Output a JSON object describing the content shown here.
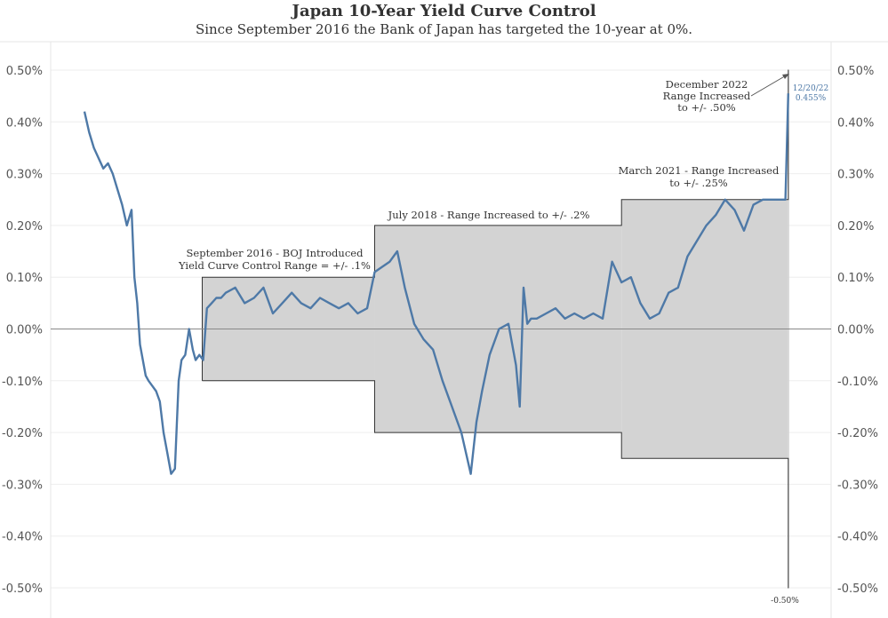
{
  "chart_data": {
    "type": "line",
    "title": "Japan 10-Year Yield Curve Control",
    "subtitle": "Since September 2016 the Bank of Japan has targeted the 10-year at 0%.",
    "ylim": [
      -0.5,
      0.5
    ],
    "yticks": [
      0.5,
      0.4,
      0.3,
      0.2,
      0.1,
      0.0,
      -0.1,
      -0.2,
      -0.3,
      -0.4,
      -0.5
    ],
    "ytick_labels": [
      "0.50%",
      "0.40%",
      "0.30%",
      "0.20%",
      "0.10%",
      "0.00%",
      "-0.10%",
      "-0.20%",
      "-0.30%",
      "-0.40%",
      "-0.50%"
    ],
    "grid": true,
    "x_range": [
      2015.5,
      2023.0
    ],
    "series": [
      {
        "name": "",
        "color": "#4e79a7",
        "x": [
          2015.5,
          2015.55,
          2015.6,
          2015.65,
          2015.7,
          2015.75,
          2015.8,
          2015.85,
          2015.9,
          2015.95,
          2016.0,
          2016.03,
          2016.06,
          2016.09,
          2016.12,
          2016.15,
          2016.18,
          2016.22,
          2016.26,
          2016.3,
          2016.34,
          2016.38,
          2016.42,
          2016.46,
          2016.5,
          2016.53,
          2016.57,
          2016.61,
          2016.65,
          2016.68,
          2016.72,
          2016.76,
          2016.8,
          2016.85,
          2016.9,
          2016.95,
          2017.0,
          2017.1,
          2017.2,
          2017.3,
          2017.4,
          2017.5,
          2017.6,
          2017.7,
          2017.8,
          2017.9,
          2018.0,
          2018.1,
          2018.2,
          2018.3,
          2018.4,
          2018.5,
          2018.58,
          2018.66,
          2018.74,
          2018.82,
          2018.9,
          2019.0,
          2019.1,
          2019.2,
          2019.3,
          2019.4,
          2019.5,
          2019.6,
          2019.66,
          2019.72,
          2019.8,
          2019.9,
          2020.0,
          2020.08,
          2020.12,
          2020.16,
          2020.2,
          2020.24,
          2020.3,
          2020.4,
          2020.5,
          2020.6,
          2020.7,
          2020.8,
          2020.9,
          2021.0,
          2021.1,
          2021.2,
          2021.3,
          2021.4,
          2021.5,
          2021.6,
          2021.7,
          2021.8,
          2021.9,
          2022.0,
          2022.1,
          2022.2,
          2022.3,
          2022.4,
          2022.5,
          2022.6,
          2022.7,
          2022.8,
          2022.9,
          2022.94,
          2022.97
        ],
        "y": [
          0.42,
          0.38,
          0.35,
          0.33,
          0.31,
          0.32,
          0.3,
          0.27,
          0.24,
          0.2,
          0.23,
          0.1,
          0.05,
          -0.03,
          -0.06,
          -0.09,
          -0.1,
          -0.11,
          -0.12,
          -0.14,
          -0.2,
          -0.24,
          -0.28,
          -0.27,
          -0.1,
          -0.06,
          -0.05,
          0.0,
          -0.04,
          -0.06,
          -0.05,
          -0.06,
          0.04,
          0.05,
          0.06,
          0.06,
          0.07,
          0.08,
          0.05,
          0.06,
          0.08,
          0.03,
          0.05,
          0.07,
          0.05,
          0.04,
          0.06,
          0.05,
          0.04,
          0.05,
          0.03,
          0.04,
          0.11,
          0.12,
          0.13,
          0.15,
          0.08,
          0.01,
          -0.02,
          -0.04,
          -0.1,
          -0.15,
          -0.2,
          -0.28,
          -0.18,
          -0.12,
          -0.05,
          0.0,
          0.01,
          -0.07,
          -0.15,
          0.08,
          0.01,
          0.02,
          0.02,
          0.03,
          0.04,
          0.02,
          0.03,
          0.02,
          0.03,
          0.02,
          0.13,
          0.09,
          0.1,
          0.05,
          0.02,
          0.03,
          0.07,
          0.08,
          0.14,
          0.17,
          0.2,
          0.22,
          0.25,
          0.23,
          0.19,
          0.24,
          0.25,
          0.25,
          0.25,
          0.25,
          0.455
        ]
      }
    ],
    "bands": [
      {
        "x0": 2016.75,
        "x1": 2018.58,
        "lower": -0.1,
        "upper": 0.1
      },
      {
        "x0": 2018.58,
        "x1": 2021.2,
        "lower": -0.2,
        "upper": 0.2
      },
      {
        "x0": 2021.2,
        "x1": 2022.97,
        "lower": -0.25,
        "upper": 0.25
      },
      {
        "x0": 2022.97,
        "x1": 2022.975,
        "lower": -0.5,
        "upper": 0.5
      }
    ],
    "annotations": {
      "sep2016_line1": "September 2016 - BOJ Introduced",
      "sep2016_line2": "Yield Curve Control Range = +/- .1%",
      "jul2018": "July 2018 - Range Increased to +/- .2%",
      "mar2021_line1": "March 2021 - Range Increased",
      "mar2021_line2": "to +/- .25%",
      "dec2022_line1": "December 2022",
      "dec2022_line2": "Range Increased",
      "dec2022_line3": "to +/- .50%",
      "last_date": "12/20/22",
      "last_value": "0.455%",
      "band_low_label": "-0.50%"
    }
  }
}
